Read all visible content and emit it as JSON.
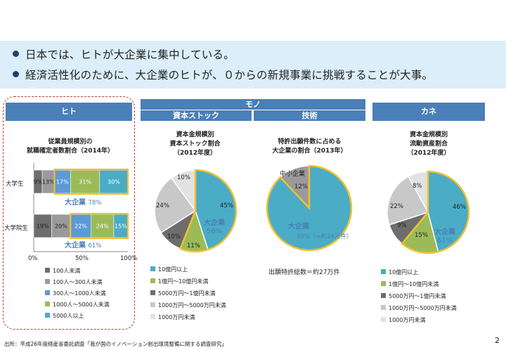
{
  "bullets": [
    "日本では、ヒトが大企業に集中している。",
    "経済活性化のために、大企業のヒトが、０からの新規事業に挑戦することが大事。"
  ],
  "headers": {
    "hito": "ヒト",
    "mono": "モノ",
    "shihon": "資本ストック",
    "gijutsu": "技術",
    "kane": "カネ"
  },
  "footer": "出所：平成26年度経産省委託調査「我が国のイノベーション創出環境整備に関する調査研究」",
  "page_number": "2",
  "colors": {
    "header_blue": "#4a7fb8",
    "banner": "#dbeef9",
    "highlight": "#f2c12e",
    "dark_gray": "#6d6d6d",
    "mid_gray": "#9a9a9a",
    "light_gray": "#c8c8c8",
    "lighter_gray": "#e2e2e2",
    "blue": "#5b9bd5",
    "sky": "#4bacc6",
    "green": "#9bbb59",
    "cyan": "#3fa9d6"
  },
  "chart_data": [
    {
      "type": "bar",
      "stacked": "percent",
      "title": "従業員規模別の\n就職確定者数割合（2014年）",
      "categories": [
        "大学生",
        "大学院生"
      ],
      "series": [
        {
          "name": "100人未満",
          "color": "#6d6d6d",
          "values": [
            9,
            19
          ]
        },
        {
          "name": "100人～300人未満",
          "color": "#9a9a9a",
          "values": [
            13,
            20
          ]
        },
        {
          "name": "300人～1000人未満",
          "color": "#5b9bd5",
          "values": [
            17,
            22
          ]
        },
        {
          "name": "1000人～5000人未満",
          "color": "#9bbb59",
          "values": [
            31,
            24
          ]
        },
        {
          "name": "5000人以上",
          "color": "#4bacc6",
          "values": [
            30,
            15
          ]
        }
      ],
      "annotations": [
        {
          "row": 0,
          "label": "大企業",
          "value": "78%"
        },
        {
          "row": 1,
          "label": "大企業",
          "value": "61%"
        }
      ],
      "xticks": [
        "0%",
        "50%",
        "100%"
      ],
      "xlim": [
        0,
        100
      ],
      "legend": "bottom"
    },
    {
      "type": "pie",
      "title": "資本金規模別\n資本ストック割合\n（2012年度）",
      "slices": [
        {
          "name": "10億円以上",
          "value": 45,
          "color": "#4bacc6"
        },
        {
          "name": "1億円～10億円未満",
          "value": 11,
          "color": "#9bbb59"
        },
        {
          "name": "5000万円～1億円未満",
          "value": 10,
          "color": "#6d6d6d"
        },
        {
          "name": "1000万円～5000万円未満",
          "value": 24,
          "color": "#c8c8c8"
        },
        {
          "name": "1000万円未満",
          "value": 10,
          "color": "#e2e2e2"
        }
      ],
      "annotation": {
        "label": "大企業",
        "value": "56%"
      },
      "legend": "bottom"
    },
    {
      "type": "pie",
      "title": "特許出願件数に占める\n大企業の割合（2013年）",
      "slices": [
        {
          "name": "大企業",
          "value": 88,
          "color": "#4bacc6"
        },
        {
          "name": "中小企業",
          "value": 12,
          "color": "#9a9a9a"
        }
      ],
      "slice_labels": [
        "88%（≒約24万件）",
        "12%"
      ],
      "caption": "出願特許総数＝約27万件"
    },
    {
      "type": "pie",
      "title": "資本金規模別\n流動資産割合\n（2012年度）",
      "slices": [
        {
          "name": "10億円以上",
          "value": 46,
          "color": "#4bacc6"
        },
        {
          "name": "1億円～10億円未満",
          "value": 15,
          "color": "#9bbb59"
        },
        {
          "name": "5000万円～1億円未満",
          "value": 9,
          "color": "#6d6d6d"
        },
        {
          "name": "1000万円～5000万円未満",
          "value": 22,
          "color": "#c8c8c8"
        },
        {
          "name": "1000万円未満",
          "value": 8,
          "color": "#e2e2e2"
        }
      ],
      "annotation": {
        "label": "大企業",
        "value": "61%"
      },
      "legend": "bottom"
    }
  ]
}
